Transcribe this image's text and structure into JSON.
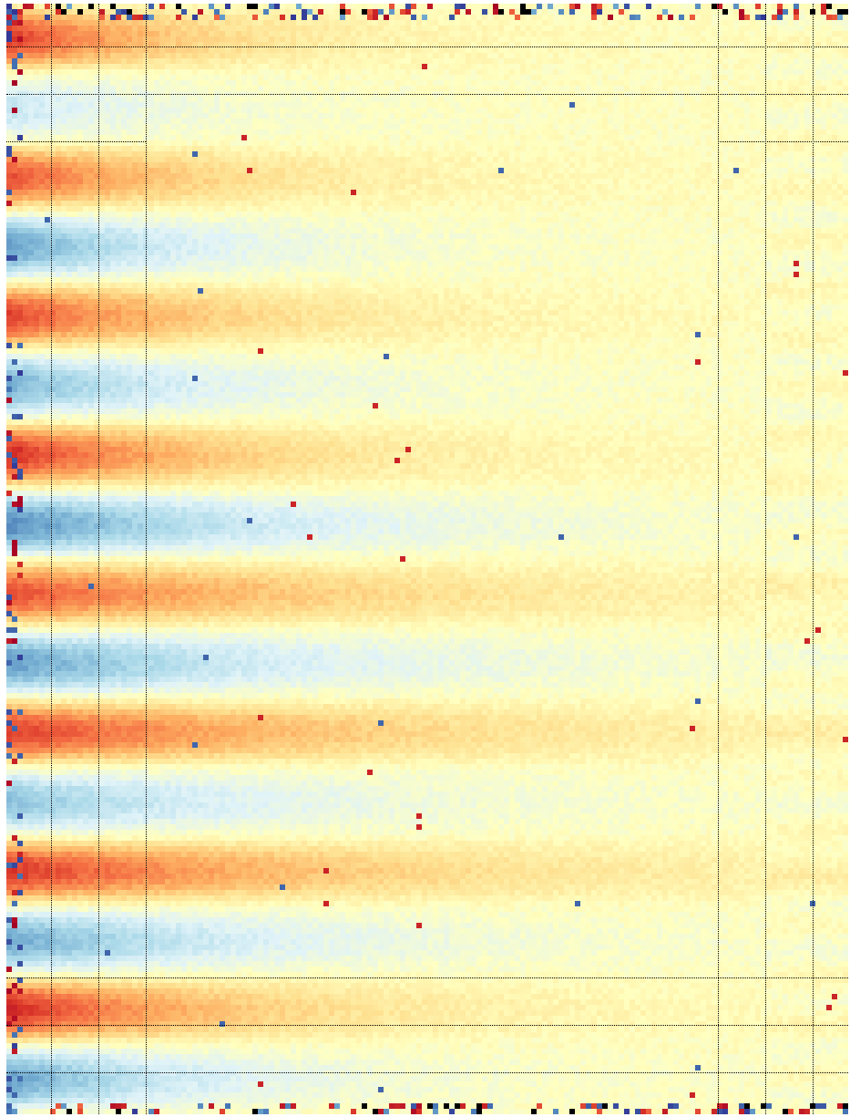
{
  "chart_data": {
    "type": "heatmap",
    "title": "",
    "xlabel": "",
    "ylabel": "",
    "colormap": [
      "#a50026",
      "#d73027",
      "#f46d43",
      "#fdae61",
      "#fee090",
      "#ffffbf",
      "#e0f3f8",
      "#abd9e9",
      "#74add1",
      "#4575b4",
      "#313695"
    ],
    "value_range": [
      -1,
      1
    ],
    "n_rows": 16,
    "rows": [
      {
        "band": "warm",
        "amp": 0.78,
        "decay": 0.2,
        "edge_noise": 0.9
      },
      {
        "band": "cool",
        "amp": 0.3,
        "decay": 0.18,
        "edge_noise": 0.2
      },
      {
        "band": "warm",
        "amp": 0.7,
        "decay": 0.22,
        "edge_noise": 0.4
      },
      {
        "band": "cool",
        "amp": 0.66,
        "decay": 0.2,
        "edge_noise": 0.4
      },
      {
        "band": "warm",
        "amp": 0.74,
        "decay": 0.24,
        "edge_noise": 0.3
      },
      {
        "band": "cool",
        "amp": 0.58,
        "decay": 0.22,
        "edge_noise": 0.3
      },
      {
        "band": "warm",
        "amp": 0.8,
        "decay": 0.25,
        "edge_noise": 0.6
      },
      {
        "band": "cool",
        "amp": 0.72,
        "decay": 0.3,
        "edge_noise": 0.6
      },
      {
        "band": "warm",
        "amp": 0.7,
        "decay": 0.38,
        "edge_noise": 0.5
      },
      {
        "band": "cool",
        "amp": 0.66,
        "decay": 0.32,
        "edge_noise": 0.5
      },
      {
        "band": "warm",
        "amp": 0.76,
        "decay": 0.4,
        "edge_noise": 0.6
      },
      {
        "band": "cool",
        "amp": 0.5,
        "decay": 0.3,
        "edge_noise": 0.3
      },
      {
        "band": "warm",
        "amp": 0.78,
        "decay": 0.4,
        "edge_noise": 0.5
      },
      {
        "band": "cool",
        "amp": 0.62,
        "decay": 0.28,
        "edge_noise": 0.8
      },
      {
        "band": "warm",
        "amp": 0.84,
        "decay": 0.26,
        "edge_noise": 0.8
      },
      {
        "band": "cool",
        "amp": 0.66,
        "decay": 0.22,
        "edge_noise": 0.6
      }
    ],
    "gridlines": {
      "visible": true,
      "style": "dotted",
      "color": "#000000"
    }
  }
}
